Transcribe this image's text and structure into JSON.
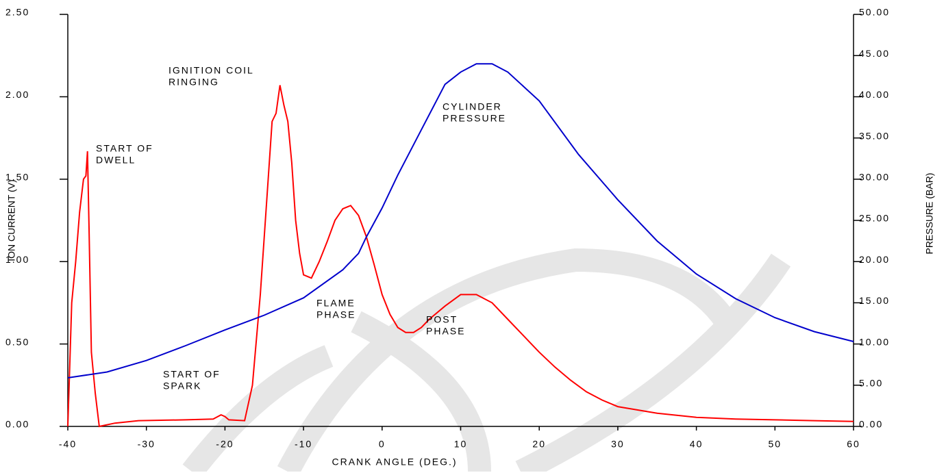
{
  "chart_data": {
    "type": "line",
    "xlabel": "CRANK ANGLE (DEG.)",
    "ylabel": "ION CURRENT (V)",
    "y2label": "PRESSURE (BAR)",
    "xlim": [
      -40,
      60
    ],
    "xticks": [
      -40,
      -30,
      -20,
      -10,
      0,
      10,
      20,
      30,
      40,
      50,
      60
    ],
    "ylim": [
      0,
      2.5
    ],
    "yticks": [
      {
        "value": 0,
        "label": "0.00"
      },
      {
        "value": 0.5,
        "label": "0.50"
      },
      {
        "value": 1,
        "label": "1.00"
      },
      {
        "value": 1.5,
        "label": "1.50"
      },
      {
        "value": 2,
        "label": "2.00"
      },
      {
        "value": 2.5,
        "label": "2.50"
      }
    ],
    "y2lim": [
      0,
      50
    ],
    "y2ticks": [
      {
        "value": 0,
        "label": "0.00"
      },
      {
        "value": 5,
        "label": "5.00"
      },
      {
        "value": 10,
        "label": "10.00"
      },
      {
        "value": 15,
        "label": "15.00"
      },
      {
        "value": 20,
        "label": "20.00"
      },
      {
        "value": 25,
        "label": "25.00"
      },
      {
        "value": 30,
        "label": "30.00"
      },
      {
        "value": 35,
        "label": "35.00"
      },
      {
        "value": 40,
        "label": "40.00"
      },
      {
        "value": 45,
        "label": "45.00"
      },
      {
        "value": 50,
        "label": "50.00"
      }
    ],
    "annotations": [
      [
        "START OF",
        "DWELL"
      ],
      [
        "IGNITION COIL",
        "RINGING"
      ],
      [
        "CYLINDER",
        "PRESSURE"
      ],
      [
        "FLAME",
        "PHASE"
      ],
      [
        "POST",
        "PHASE"
      ],
      [
        "START OF",
        "SPARK"
      ]
    ],
    "series": [
      {
        "color": "#ff0000",
        "axis": "y",
        "x": [
          -40,
          -39.8,
          -39.5,
          -39,
          -38.5,
          -38,
          -37.7,
          -37.5,
          -37.3,
          -37,
          -36.5,
          -36,
          -34,
          -31,
          -25,
          -21.5,
          -20.5,
          -20,
          -19.5,
          -17.5,
          -16.5,
          -15.5,
          -14.5,
          -14,
          -13.5,
          -13,
          -12.5,
          -12,
          -11.5,
          -11,
          -10.5,
          -10,
          -9,
          -8,
          -7,
          -6,
          -5,
          -4,
          -3,
          -2,
          -1,
          0,
          1,
          2,
          3,
          4,
          5,
          6,
          8,
          10,
          12,
          14,
          16,
          18,
          20,
          22,
          24,
          26,
          28,
          30,
          35,
          40,
          45,
          50,
          55,
          60
        ],
        "values": [
          0,
          0.3,
          0.75,
          1.0,
          1.3,
          1.5,
          1.52,
          1.67,
          1.2,
          0.45,
          0.2,
          0,
          0.02,
          0.035,
          0.04,
          0.045,
          0.07,
          0.06,
          0.04,
          0.035,
          0.25,
          0.8,
          1.5,
          1.85,
          1.9,
          2.07,
          1.95,
          1.85,
          1.6,
          1.25,
          1.05,
          0.92,
          0.9,
          1.0,
          1.12,
          1.25,
          1.32,
          1.34,
          1.28,
          1.15,
          0.98,
          0.8,
          0.68,
          0.6,
          0.57,
          0.57,
          0.6,
          0.65,
          0.73,
          0.8,
          0.8,
          0.75,
          0.65,
          0.55,
          0.45,
          0.36,
          0.28,
          0.21,
          0.16,
          0.12,
          0.08,
          0.055,
          0.045,
          0.04,
          0.035,
          0.03
        ]
      },
      {
        "color": "#0000cc",
        "axis": "y2",
        "x": [
          -40,
          -35,
          -30,
          -25,
          -20,
          -15,
          -10,
          -5,
          -3,
          -2,
          0,
          2,
          5,
          8,
          10,
          12,
          14,
          16,
          20,
          25,
          30,
          35,
          40,
          45,
          50,
          55,
          60
        ],
        "values": [
          5.9,
          6.6,
          8.0,
          9.8,
          11.7,
          13.5,
          15.6,
          19,
          21,
          23,
          26.5,
          30.5,
          36,
          41.5,
          43,
          44,
          44,
          43,
          39.5,
          33,
          27.5,
          22.5,
          18.5,
          15.5,
          13.2,
          11.5,
          10.3
        ]
      }
    ]
  }
}
